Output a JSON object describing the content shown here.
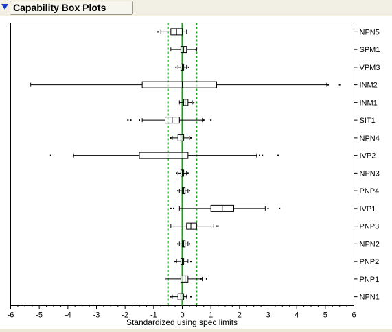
{
  "outline": {
    "title": "Capability Box Plots"
  },
  "chart_data": {
    "type": "boxplot",
    "title": "",
    "xlabel": "Standardized using spec limits",
    "ylabel": "",
    "xlim": [
      -6,
      6
    ],
    "xticks": [
      "-6",
      "-5",
      "-4",
      "-3",
      "-2",
      "-1",
      "0",
      "1",
      "2",
      "3",
      "4",
      "5",
      "6"
    ],
    "center_line": {
      "value": 0,
      "color": "#1aa01a"
    },
    "spec_lines": {
      "values": [
        -0.5,
        0.5
      ],
      "color": "#1aa01a",
      "style": "dotted"
    },
    "categories": [
      "NPN5",
      "SPM1",
      "VPM3",
      "INM2",
      "INM1",
      "SIT1",
      "NPN4",
      "IVP2",
      "NPN3",
      "PNP4",
      "IVP1",
      "PNP3",
      "NPN2",
      "PNP2",
      "PNP1",
      "NPN1"
    ],
    "boxes": [
      {
        "name": "NPN5",
        "min": -0.75,
        "q1": -0.4,
        "median": -0.2,
        "q3": 0.0,
        "max": 0.15,
        "outliers": [
          -0.85
        ]
      },
      {
        "name": "SPM1",
        "min": -0.4,
        "q1": -0.05,
        "median": 0.05,
        "q3": 0.15,
        "max": 0.5,
        "outliers": [
          0.48
        ]
      },
      {
        "name": "VPM3",
        "min": -0.15,
        "q1": -0.05,
        "median": 0.0,
        "q3": 0.05,
        "max": 0.15,
        "outliers": [
          -0.22,
          0.22
        ]
      },
      {
        "name": "INM2",
        "min": -5.3,
        "q1": -1.4,
        "median": 0.0,
        "q3": 1.2,
        "max": 5.05,
        "outliers": [
          5.1,
          5.5
        ]
      },
      {
        "name": "INM1",
        "min": -0.1,
        "q1": 0.05,
        "median": 0.1,
        "q3": 0.2,
        "max": 0.35,
        "outliers": [
          0.4
        ]
      },
      {
        "name": "SIT1",
        "min": -1.4,
        "q1": -0.6,
        "median": -0.35,
        "q3": -0.1,
        "max": 0.7,
        "outliers": [
          -1.9,
          -1.8,
          -1.5,
          0.75,
          1.0
        ]
      },
      {
        "name": "NPN4",
        "min": -0.35,
        "q1": -0.15,
        "median": -0.05,
        "q3": 0.05,
        "max": 0.25,
        "outliers": [
          -0.4,
          0.3
        ]
      },
      {
        "name": "IVP2",
        "min": -3.8,
        "q1": -1.5,
        "median": -0.6,
        "q3": 0.2,
        "max": 2.6,
        "outliers": [
          -4.6,
          2.7,
          2.8,
          3.35
        ]
      },
      {
        "name": "NPN3",
        "min": -0.15,
        "q1": -0.05,
        "median": 0.0,
        "q3": 0.05,
        "max": 0.15,
        "outliers": [
          -0.2,
          0.2
        ]
      },
      {
        "name": "PNP4",
        "min": -0.1,
        "q1": 0.0,
        "median": 0.05,
        "q3": 0.1,
        "max": 0.2,
        "outliers": [
          -0.15,
          0.25
        ]
      },
      {
        "name": "IVP1",
        "min": -0.1,
        "q1": 1.0,
        "median": 1.4,
        "q3": 1.8,
        "max": 2.9,
        "outliers": [
          -0.3,
          -0.4,
          3.0,
          3.4
        ]
      },
      {
        "name": "PNP3",
        "min": -0.4,
        "q1": 0.15,
        "median": 0.3,
        "q3": 0.5,
        "max": 1.1,
        "outliers": [
          1.2,
          1.25
        ]
      },
      {
        "name": "NPN2",
        "min": -0.1,
        "q1": 0.0,
        "median": 0.05,
        "q3": 0.1,
        "max": 0.2,
        "outliers": [
          -0.15,
          0.25
        ]
      },
      {
        "name": "PNP2",
        "min": -0.2,
        "q1": -0.05,
        "median": 0.0,
        "q3": 0.05,
        "max": 0.2,
        "outliers": [
          -0.25,
          0.3
        ]
      },
      {
        "name": "PNP1",
        "min": -0.6,
        "q1": -0.05,
        "median": 0.1,
        "q3": 0.2,
        "max": 0.7,
        "outliers": [
          0.65,
          0.85
        ]
      },
      {
        "name": "NPN1",
        "min": -0.35,
        "q1": -0.15,
        "median": -0.05,
        "q3": 0.05,
        "max": 0.15,
        "outliers": [
          -0.4,
          0.3
        ]
      }
    ]
  }
}
